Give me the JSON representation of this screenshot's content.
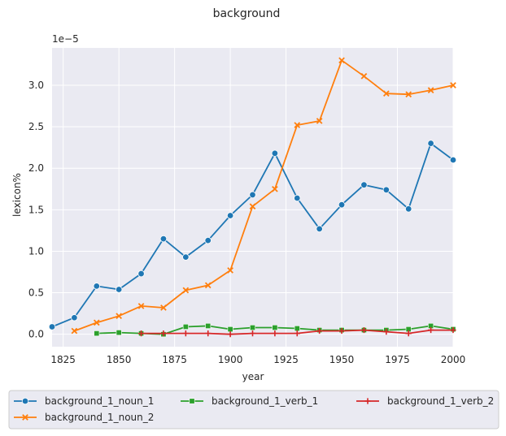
{
  "chart_data": {
    "type": "line",
    "title": "background",
    "xlabel": "year",
    "ylabel": "lexicon%",
    "y_offset_label": "1e−5",
    "xlim": [
      1820,
      2000
    ],
    "ylim": [
      -0.15,
      3.45
    ],
    "x_ticks": [
      1825,
      1850,
      1875,
      1900,
      1925,
      1950,
      1975,
      2000
    ],
    "y_ticks": [
      0.0,
      0.5,
      1.0,
      1.5,
      2.0,
      2.5,
      3.0
    ],
    "y_tick_labels": [
      "0.0",
      "0.5",
      "1.0",
      "1.5",
      "2.0",
      "2.5",
      "3.0"
    ],
    "grid": true,
    "legend_position": "bottom",
    "series": [
      {
        "name": "background_1_noun_1",
        "color": "#1f77b4",
        "marker": "circle",
        "x": [
          1820,
          1830,
          1840,
          1850,
          1860,
          1870,
          1880,
          1890,
          1900,
          1910,
          1920,
          1930,
          1940,
          1950,
          1960,
          1970,
          1980,
          1990,
          2000
        ],
        "values": [
          0.09,
          0.2,
          0.58,
          0.54,
          0.73,
          1.15,
          0.93,
          1.13,
          1.43,
          1.68,
          2.18,
          1.64,
          1.27,
          1.56,
          1.8,
          1.74,
          1.51,
          2.3,
          2.1
        ]
      },
      {
        "name": "background_1_noun_2",
        "color": "#ff7f0e",
        "marker": "x",
        "x": [
          1830,
          1840,
          1850,
          1860,
          1870,
          1880,
          1890,
          1900,
          1910,
          1920,
          1930,
          1940,
          1950,
          1960,
          1970,
          1980,
          1990,
          2000
        ],
        "values": [
          0.04,
          0.14,
          0.22,
          0.34,
          0.32,
          0.53,
          0.59,
          0.77,
          1.54,
          1.75,
          2.52,
          2.57,
          3.3,
          3.11,
          2.9,
          2.89,
          2.94,
          3.0
        ]
      },
      {
        "name": "background_1_verb_1",
        "color": "#2ca02c",
        "marker": "square",
        "x": [
          1840,
          1850,
          1860,
          1870,
          1880,
          1890,
          1900,
          1910,
          1920,
          1930,
          1940,
          1950,
          1960,
          1970,
          1980,
          1990,
          2000
        ],
        "values": [
          0.01,
          0.02,
          0.01,
          0.0,
          0.09,
          0.1,
          0.06,
          0.08,
          0.08,
          0.07,
          0.05,
          0.05,
          0.05,
          0.05,
          0.06,
          0.1,
          0.06
        ]
      },
      {
        "name": "background_1_verb_2",
        "color": "#d62728",
        "marker": "plus",
        "x": [
          1860,
          1870,
          1880,
          1890,
          1900,
          1910,
          1920,
          1930,
          1940,
          1950,
          1960,
          1970,
          1980,
          1990,
          2000
        ],
        "values": [
          0.01,
          0.01,
          0.01,
          0.01,
          0.0,
          0.01,
          0.01,
          0.01,
          0.04,
          0.04,
          0.05,
          0.03,
          0.01,
          0.05,
          0.05
        ]
      }
    ]
  }
}
